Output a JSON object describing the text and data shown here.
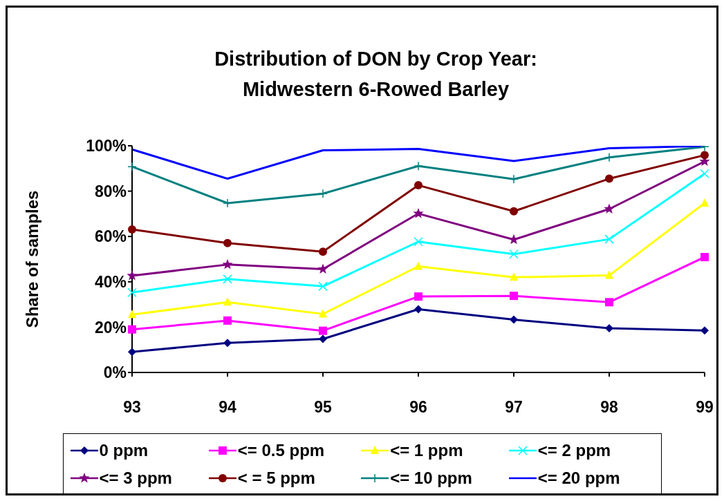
{
  "chart_data": {
    "type": "line",
    "title": "Distribution of DON by Crop Year:\nMidwestern 6-Rowed Barley",
    "ylabel": "Share of samples",
    "categories": [
      "93",
      "94",
      "95",
      "96",
      "97",
      "98",
      "99"
    ],
    "series": [
      {
        "name": "0 ppm",
        "color": "#000080",
        "marker": "diamond",
        "values": [
          9.1,
          13.0,
          14.8,
          27.9,
          23.3,
          19.5,
          18.5
        ]
      },
      {
        "name": "<= 0.5 ppm",
        "color": "#ff00ff",
        "marker": "square",
        "values": [
          19.0,
          22.9,
          18.4,
          33.5,
          33.8,
          31.0,
          50.9
        ]
      },
      {
        "name": "<= 1 ppm",
        "color": "#ffff00",
        "marker": "triangle",
        "values": [
          25.5,
          31.0,
          25.8,
          46.8,
          42.0,
          42.8,
          74.7
        ]
      },
      {
        "name": "<= 2 ppm",
        "color": "#00ffff",
        "marker": "cross",
        "values": [
          35.3,
          41.2,
          38.0,
          57.7,
          52.2,
          58.8,
          87.7
        ]
      },
      {
        "name": "<= 3 ppm",
        "color": "#800080",
        "marker": "star",
        "values": [
          42.7,
          47.6,
          45.6,
          70.1,
          58.6,
          72.1,
          93.1
        ]
      },
      {
        "name": "< = 5 ppm",
        "color": "#800000",
        "marker": "circle",
        "values": [
          63.1,
          57.1,
          53.3,
          82.6,
          71.1,
          85.5,
          95.9
        ]
      },
      {
        "name": "<= 10 ppm",
        "color": "#008080",
        "marker": "plus",
        "values": [
          90.8,
          74.7,
          78.9,
          91.1,
          85.3,
          94.9,
          99.6
        ]
      },
      {
        "name": "<= 20 ppm",
        "color": "#0000ff",
        "marker": "none",
        "values": [
          98.4,
          85.5,
          98.0,
          98.6,
          93.3,
          98.9,
          99.9
        ]
      }
    ],
    "ylim": [
      0,
      100
    ],
    "yticks": [
      {
        "value": 0,
        "label": "0%"
      },
      {
        "value": 20,
        "label": "20%"
      },
      {
        "value": 40,
        "label": "40%"
      },
      {
        "value": 60,
        "label": "60%"
      },
      {
        "value": 80,
        "label": "80%"
      },
      {
        "value": 100,
        "label": "100%"
      }
    ],
    "grid": false,
    "legend": "bottom"
  }
}
